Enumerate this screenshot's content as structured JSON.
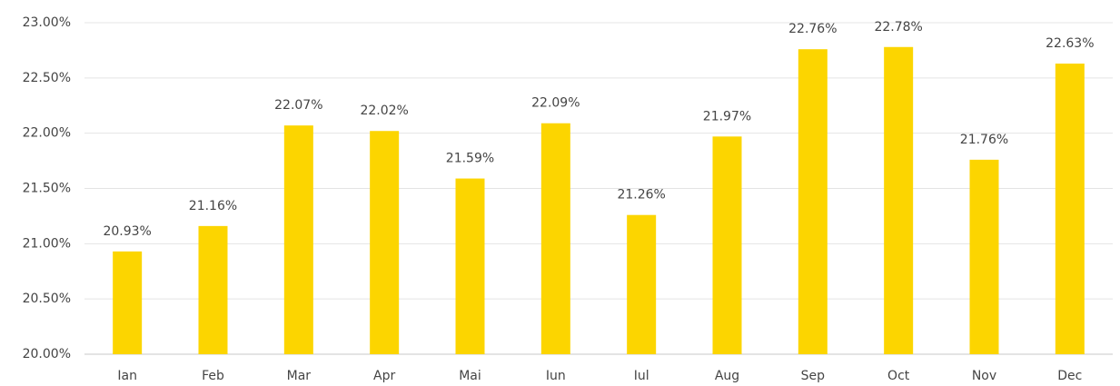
{
  "chart_data": {
    "type": "bar",
    "categories": [
      "Ian",
      "Feb",
      "Mar",
      "Apr",
      "Mai",
      "Iun",
      "Iul",
      "Aug",
      "Sep",
      "Oct",
      "Nov",
      "Dec"
    ],
    "values": [
      20.93,
      21.16,
      22.07,
      22.02,
      21.59,
      22.09,
      21.26,
      21.97,
      22.76,
      22.78,
      21.76,
      22.63
    ],
    "value_labels": [
      "20.93%",
      "21.16%",
      "22.07%",
      "22.02%",
      "21.59%",
      "22.09%",
      "21.26%",
      "21.97%",
      "22.76%",
      "22.78%",
      "21.76%",
      "22.63%"
    ],
    "color": "#fcd500",
    "ylim": [
      20,
      23
    ],
    "yticks": [
      {
        "value": 20,
        "label": "20.00%"
      },
      {
        "value": 20.5,
        "label": "20.50%"
      },
      {
        "value": 21,
        "label": "21.00%"
      },
      {
        "value": 21.5,
        "label": "21.50%"
      },
      {
        "value": 22,
        "label": "22.00%"
      },
      {
        "value": 22.5,
        "label": "22.50%"
      },
      {
        "value": 23,
        "label": "23.00%"
      }
    ],
    "grid": true
  }
}
